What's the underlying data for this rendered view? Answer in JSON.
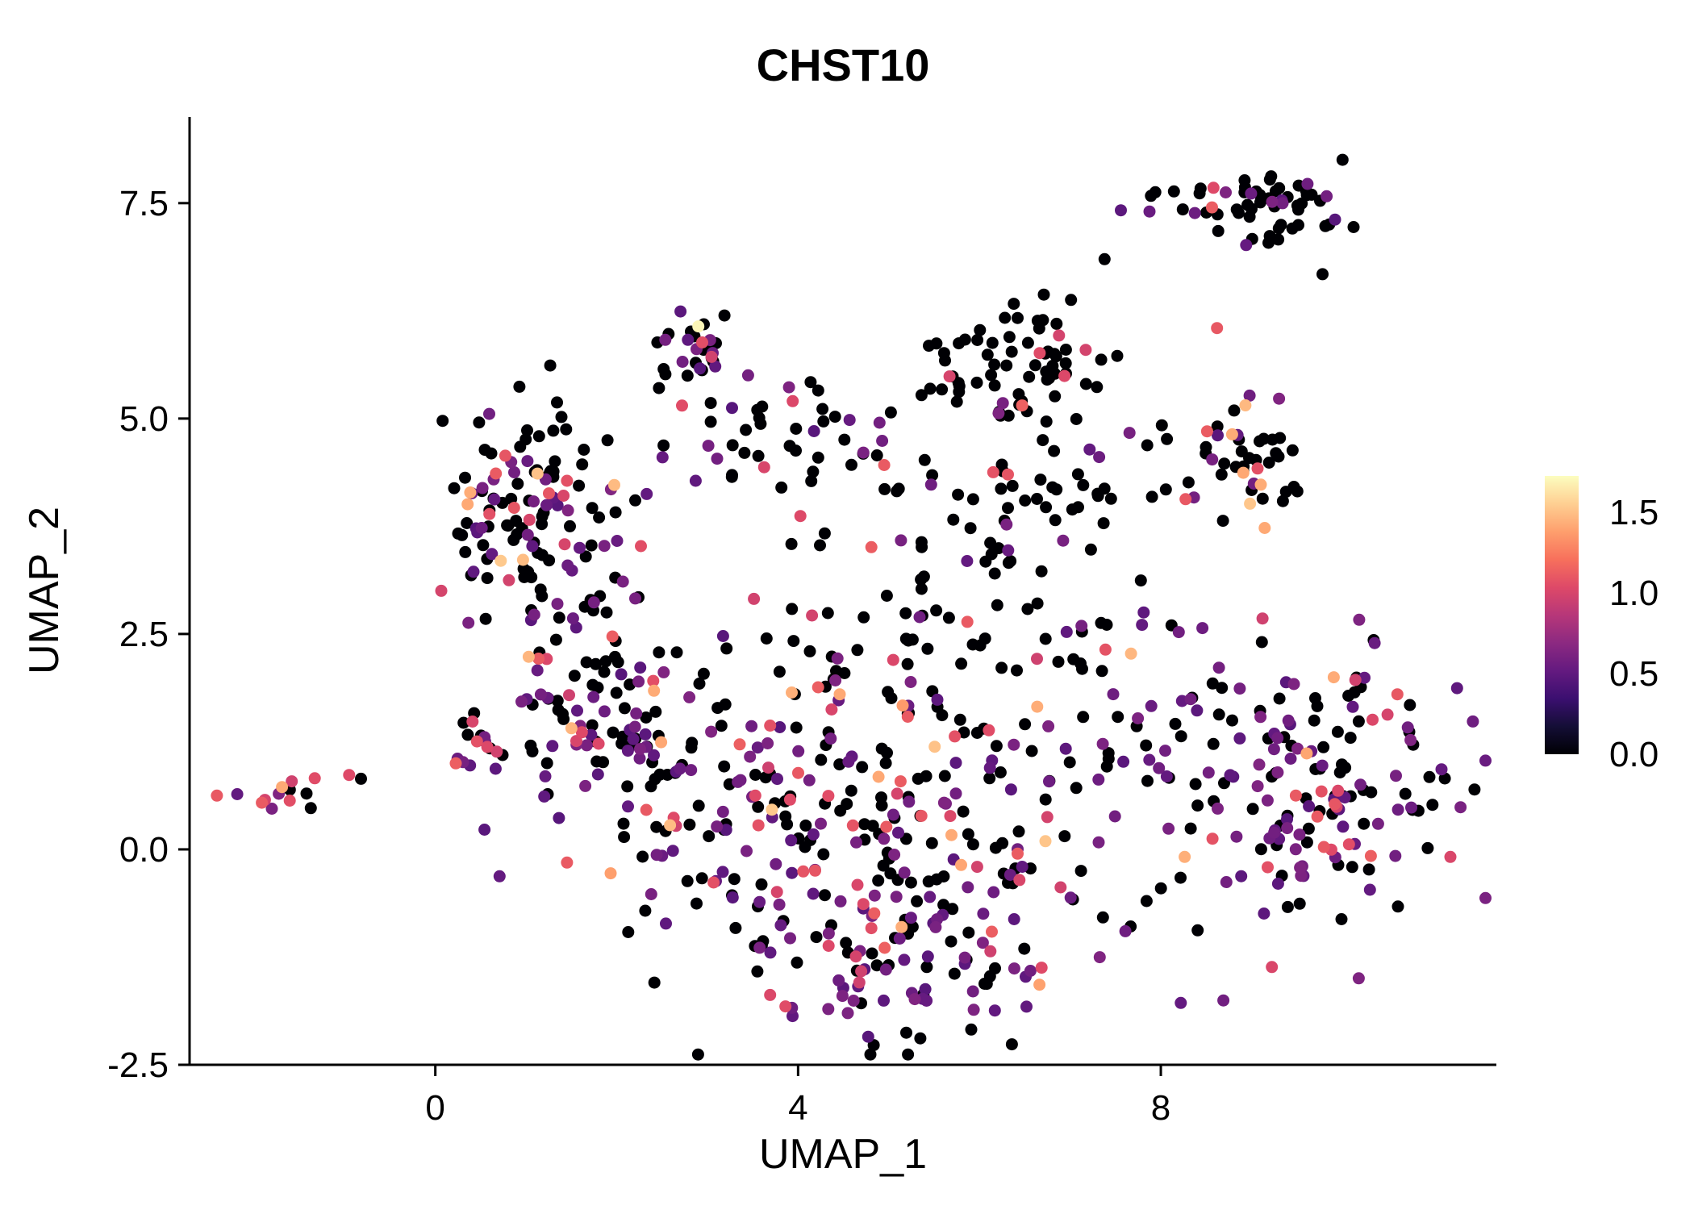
{
  "chart_data": {
    "type": "scatter",
    "title": "CHST10",
    "xlabel": "UMAP_1",
    "ylabel": "UMAP_2",
    "xlim": [
      -2.71,
      11.7
    ],
    "ylim": [
      -2.5,
      8.5
    ],
    "grid": false,
    "background": "#ffffff",
    "point_radius_px": 7.5,
    "seed": 3,
    "xticks": [
      {
        "v": 0,
        "label": "0"
      },
      {
        "v": 4,
        "label": "4"
      },
      {
        "v": 8,
        "label": "8"
      }
    ],
    "yticks": [
      {
        "v": -2.5,
        "label": "-2.5"
      },
      {
        "v": 0.0,
        "label": "0.0"
      },
      {
        "v": 2.5,
        "label": "2.5"
      },
      {
        "v": 5.0,
        "label": "5.0"
      },
      {
        "v": 7.5,
        "label": "7.5"
      }
    ],
    "legend": {
      "position": "right",
      "vmin": 0.0,
      "vmax": 1.725,
      "ticks": [
        {
          "v": 1.5,
          "label": "1.5"
        },
        {
          "v": 1.0,
          "label": "1.0"
        },
        {
          "v": 0.5,
          "label": "0.5"
        },
        {
          "v": 0.0,
          "label": "0.0"
        }
      ],
      "gradient_stops": [
        [
          0.0,
          "#000004"
        ],
        [
          0.1,
          "#140e36"
        ],
        [
          0.2,
          "#3b0f70"
        ],
        [
          0.3,
          "#641a80"
        ],
        [
          0.4,
          "#8c2981"
        ],
        [
          0.5,
          "#b73779"
        ],
        [
          0.6,
          "#de4968"
        ],
        [
          0.7,
          "#f7705c"
        ],
        [
          0.8,
          "#fe9f6d"
        ],
        [
          0.9,
          "#fecf92"
        ],
        [
          1.0,
          "#fcfdbf"
        ]
      ]
    },
    "clusters": [
      {
        "name": "far-left",
        "cx": -1.55,
        "cy": 0.68,
        "sx": 0.28,
        "sy": 0.13,
        "n": 14,
        "levels": [
          [
            0,
            0.3
          ],
          [
            0.55,
            0.35
          ],
          [
            1.05,
            0.2
          ],
          [
            1.45,
            0.15
          ]
        ]
      },
      {
        "name": "left-upper",
        "cx": 1.05,
        "cy": 3.85,
        "sx": 0.55,
        "sy": 0.65,
        "n": 130,
        "levels": [
          [
            0,
            0.55
          ],
          [
            0.55,
            0.3
          ],
          [
            1.05,
            0.1
          ],
          [
            1.45,
            0.05
          ]
        ]
      },
      {
        "name": "left-mid",
        "cx": 1.85,
        "cy": 1.6,
        "sx": 0.55,
        "sy": 0.6,
        "n": 85,
        "levels": [
          [
            0,
            0.5
          ],
          [
            0.55,
            0.35
          ],
          [
            1.05,
            0.12
          ],
          [
            1.45,
            0.03
          ]
        ]
      },
      {
        "name": "small-top",
        "cx": 2.92,
        "cy": 5.85,
        "sx": 0.28,
        "sy": 0.3,
        "n": 30,
        "levels": [
          [
            0,
            0.6
          ],
          [
            0.55,
            0.25
          ],
          [
            1.05,
            0.1
          ],
          [
            1.45,
            0.05
          ]
        ]
      },
      {
        "name": "upper-center",
        "cx": 4.1,
        "cy": 4.35,
        "sx": 1.0,
        "sy": 0.45,
        "n": 40,
        "levels": [
          [
            0,
            0.6
          ],
          [
            0.55,
            0.3
          ],
          [
            1.05,
            0.1
          ]
        ]
      },
      {
        "name": "top-middle",
        "cx": 6.3,
        "cy": 5.5,
        "sx": 0.5,
        "sy": 0.5,
        "n": 70,
        "levels": [
          [
            0,
            0.86
          ],
          [
            0.55,
            0.07
          ],
          [
            1.05,
            0.07
          ]
        ]
      },
      {
        "name": "mid-right-sparse",
        "cx": 6.7,
        "cy": 4.1,
        "sx": 0.75,
        "sy": 0.6,
        "n": 45,
        "levels": [
          [
            0,
            0.78
          ],
          [
            0.55,
            0.12
          ],
          [
            1.05,
            0.1
          ]
        ]
      },
      {
        "name": "top-right",
        "cx": 9.15,
        "cy": 7.5,
        "sx": 0.5,
        "sy": 0.25,
        "n": 62,
        "levels": [
          [
            0,
            0.76
          ],
          [
            0.55,
            0.2
          ],
          [
            1.05,
            0.04
          ]
        ]
      },
      {
        "name": "right-upper",
        "cx": 8.85,
        "cy": 4.5,
        "sx": 0.42,
        "sy": 0.38,
        "n": 48,
        "levels": [
          [
            0,
            0.6
          ],
          [
            0.55,
            0.25
          ],
          [
            1.05,
            0.1
          ],
          [
            1.45,
            0.05
          ]
        ]
      },
      {
        "name": "central-blob",
        "cx": 4.6,
        "cy": 0.35,
        "sx": 1.5,
        "sy": 1.05,
        "n": 330,
        "levels": [
          [
            0,
            0.52
          ],
          [
            0.55,
            0.33
          ],
          [
            1.05,
            0.11
          ],
          [
            1.45,
            0.04
          ]
        ]
      },
      {
        "name": "bottom-arm",
        "cx": 5.3,
        "cy": -1.45,
        "sx": 0.85,
        "sy": 0.38,
        "n": 60,
        "levels": [
          [
            0,
            0.5
          ],
          [
            0.55,
            0.4
          ],
          [
            1.05,
            0.1
          ]
        ]
      },
      {
        "name": "right-lower",
        "cx": 9.9,
        "cy": 0.6,
        "sx": 0.72,
        "sy": 0.85,
        "n": 155,
        "levels": [
          [
            0,
            0.45
          ],
          [
            0.55,
            0.4
          ],
          [
            1.05,
            0.12
          ],
          [
            1.45,
            0.03
          ]
        ]
      },
      {
        "name": "mid-band",
        "cx": 5.5,
        "cy": 2.6,
        "sx": 1.3,
        "sy": 0.5,
        "n": 55,
        "levels": [
          [
            0,
            0.68
          ],
          [
            0.55,
            0.22
          ],
          [
            1.05,
            0.1
          ]
        ]
      },
      {
        "name": "upper-sparse",
        "cx": 4.7,
        "cy": 5.1,
        "sx": 0.9,
        "sy": 0.3,
        "n": 14,
        "levels": [
          [
            0,
            0.8
          ],
          [
            0.55,
            0.2
          ]
        ]
      },
      {
        "name": "bridge-right",
        "cx": 8.0,
        "cy": 1.2,
        "sx": 0.5,
        "sy": 0.55,
        "n": 25,
        "levels": [
          [
            0,
            0.65
          ],
          [
            0.55,
            0.25
          ],
          [
            1.05,
            0.1
          ]
        ]
      },
      {
        "name": "left-clump",
        "cx": 0.55,
        "cy": 1.3,
        "sx": 0.25,
        "sy": 0.18,
        "n": 16,
        "levels": [
          [
            0,
            0.55
          ],
          [
            0.55,
            0.25
          ],
          [
            1.05,
            0.2
          ]
        ]
      }
    ],
    "singles": [
      {
        "x": 2.9,
        "y": 6.07,
        "v": 1.7
      },
      {
        "x": 2.72,
        "y": 5.15,
        "v": 1.05
      },
      {
        "x": 8.62,
        "y": 6.05,
        "v": 1.1
      },
      {
        "x": -0.82,
        "y": 0.82,
        "v": 0
      },
      {
        "x": 7.38,
        "y": 6.85,
        "v": 0
      },
      {
        "x": 3.55,
        "y": 5.1,
        "v": 0
      },
      {
        "x": 6.85,
        "y": 6.1,
        "v": 0
      }
    ]
  }
}
